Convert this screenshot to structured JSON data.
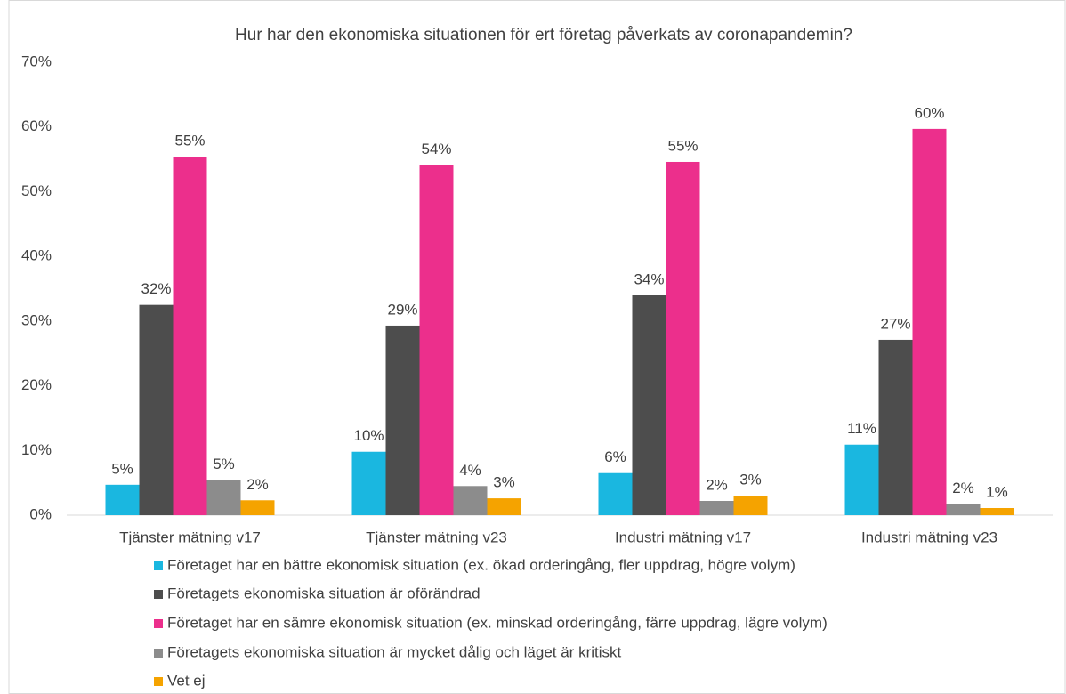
{
  "chart_data": {
    "type": "bar",
    "title": "Hur har den ekonomiska situationen för ert företag påverkats av coronapandemin?",
    "categories": [
      "Tjänster mätning v17",
      "Tjänster mätning v23",
      "Industri mätning v17",
      "Industri mätning v23"
    ],
    "series": [
      {
        "name": "Företaget har en bättre ekonomisk situation (ex. ökad orderingång, fler uppdrag, högre volym)",
        "color": "#1ab7e0",
        "values": [
          4.7,
          9.8,
          6.5,
          10.9
        ],
        "value_labels": [
          "5%",
          "10%",
          "6%",
          "11%"
        ]
      },
      {
        "name": "Företagets ekonomiska situation är oförändrad",
        "color": "#4d4d4d",
        "values": [
          32.5,
          29.3,
          34.0,
          27.1
        ],
        "value_labels": [
          "32%",
          "29%",
          "34%",
          "27%"
        ]
      },
      {
        "name": "Företaget har en sämre ekonomisk situation (ex. minskad orderingång, färre uppdrag, lägre volym)",
        "color": "#ec2f8c",
        "values": [
          55.4,
          54.1,
          54.6,
          59.7
        ],
        "value_labels": [
          "55%",
          "54%",
          "55%",
          "60%"
        ]
      },
      {
        "name": "Företagets ekonomiska situation är mycket dålig och läget är kritiskt",
        "color": "#8c8c8c",
        "values": [
          5.4,
          4.5,
          2.2,
          1.7
        ],
        "value_labels": [
          "5%",
          "4%",
          "2%",
          "2%"
        ]
      },
      {
        "name": "Vet ej",
        "color": "#f5a300",
        "values": [
          2.3,
          2.6,
          3.0,
          1.1
        ],
        "value_labels": [
          "2%",
          "3%",
          "3%",
          "1%"
        ]
      }
    ],
    "ylim": [
      0,
      70
    ],
    "yticks": [
      {
        "value": 0,
        "label": "0%"
      },
      {
        "value": 10,
        "label": "10%"
      },
      {
        "value": 20,
        "label": "20%"
      },
      {
        "value": 30,
        "label": "30%"
      },
      {
        "value": 40,
        "label": "40%"
      },
      {
        "value": 50,
        "label": "50%"
      },
      {
        "value": 60,
        "label": "60%"
      },
      {
        "value": 70,
        "label": "70%"
      }
    ],
    "grid": false
  }
}
